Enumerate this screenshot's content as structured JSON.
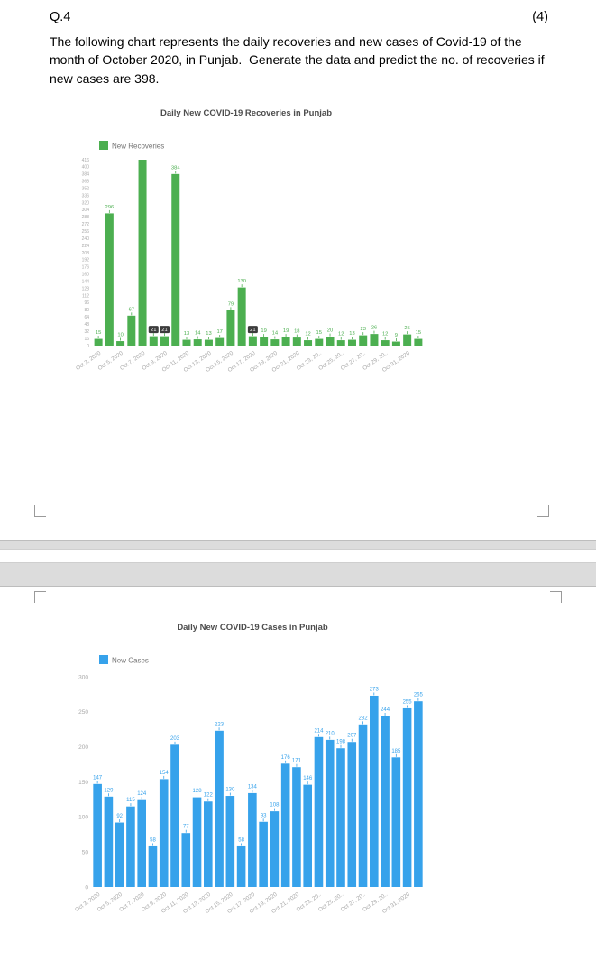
{
  "document": {
    "question_number": "Q.4",
    "marks": "(4)",
    "question_text": "The following chart represents the daily recoveries and new cases of Covid-19 of the month of October 2020, in Punjab.  Generate the data and predict the no. of recoveries if new cases are 398."
  },
  "chart_data": [
    {
      "type": "bar",
      "title": "Daily New COVID-19 Recoveries in Punjab",
      "legend": "New Recoveries",
      "legend_position": "top-left",
      "grid": false,
      "bar_color": "#4CAF50",
      "label_color": "#4CAF50",
      "tick_color": "#a9a9a9",
      "title_color": "#4d4d4d",
      "ylim": [
        0,
        416
      ],
      "ytick_step": 16,
      "values": [
        15,
        296,
        10,
        67,
        416,
        21,
        21,
        384,
        13,
        14,
        13,
        17,
        79,
        130,
        21,
        19,
        14,
        19,
        18,
        12,
        15,
        20,
        12,
        13,
        23,
        26,
        12,
        9,
        25,
        15
      ],
      "highlighted_label_indices": [
        5,
        6,
        14
      ],
      "x_tick_every": 2,
      "x_tick_labels": [
        "Oct 3, 2020",
        "Oct 5, 2020",
        "Oct 7, 2020",
        "Oct 9, 2020",
        "Oct 11, 2020",
        "Oct 13, 2020",
        "Oct 15, 2020",
        "Oct 17, 2020",
        "Oct 19, 2020",
        "Oct 21, 2020",
        "Oct 23, 20..",
        "Oct 25, 20..",
        "Oct 27, 20..",
        "Oct 29, 20..",
        "Oct 31, 2020"
      ]
    },
    {
      "type": "bar",
      "title": "Daily New COVID-19 Cases in Punjab",
      "legend": "New Cases",
      "legend_position": "top-left",
      "grid": false,
      "bar_color": "#36A2EB",
      "label_color": "#36A2EB",
      "tick_color": "#a9a9a9",
      "title_color": "#4d4d4d",
      "ylim": [
        0,
        300
      ],
      "ytick_step": 50,
      "values": [
        147,
        129,
        92,
        115,
        124,
        58,
        154,
        203,
        77,
        128,
        122,
        223,
        130,
        58,
        134,
        93,
        108,
        176,
        171,
        146,
        214,
        210,
        198,
        207,
        232,
        273,
        244,
        185,
        255,
        265
      ],
      "highlighted_label_indices": [],
      "x_tick_every": 2,
      "x_tick_labels": [
        "Oct 3, 2020",
        "Oct 5, 2020",
        "Oct 7, 2020",
        "Oct 9, 2020",
        "Oct 11, 2020",
        "Oct 13, 2020",
        "Oct 15, 2020",
        "Oct 17, 2020",
        "Oct 19, 2020",
        "Oct 21, 2020",
        "Oct 23, 20..",
        "Oct 25, 20..",
        "Oct 27, 20..",
        "Oct 29, 20..",
        "Oct 31, 2020"
      ]
    }
  ]
}
